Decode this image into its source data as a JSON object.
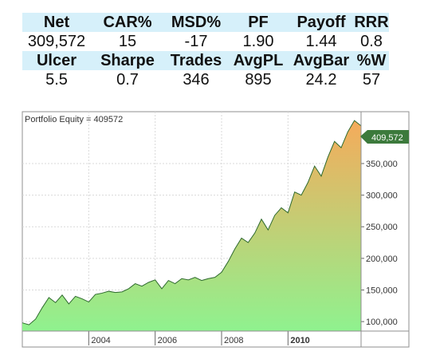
{
  "stats": {
    "rows": [
      {
        "type": "hdr",
        "cells": [
          "Net",
          "CAR%",
          "MSD%",
          "PF",
          "Payoff",
          "RRR"
        ]
      },
      {
        "type": "val",
        "cells": [
          "309,572",
          "15",
          "-17",
          "1.90",
          "1.44",
          "0.8"
        ]
      },
      {
        "type": "hdr",
        "cells": [
          "Ulcer",
          "Sharpe",
          "Trades",
          "AvgPL",
          "AvgBar",
          "%W"
        ]
      },
      {
        "type": "val",
        "cells": [
          "5.5",
          "0.7",
          "346",
          "895",
          "24.2",
          "57"
        ]
      }
    ]
  },
  "chart_data": {
    "type": "area",
    "title": "Portfolio Equity = 409572",
    "last_value_label": "409,572",
    "x_ticks": [
      "2004",
      "2006",
      "2008",
      "2010"
    ],
    "bold_tick": "2010",
    "y_ticks": [
      "100,000",
      "150,000",
      "200,000",
      "250,000",
      "300,000",
      "350,000"
    ],
    "ylim": [
      85000,
      432000
    ],
    "xlim": [
      2002.0,
      2012.2
    ],
    "grid": true,
    "gradient": {
      "bottom": "#8ff28f",
      "top": "#f5ab5b"
    },
    "line_color": "#2e6a2e",
    "marker_color": "#3c7a3c",
    "x": [
      2002.0,
      2002.2,
      2002.4,
      2002.6,
      2002.8,
      2003.0,
      2003.2,
      2003.4,
      2003.6,
      2003.8,
      2004.0,
      2004.2,
      2004.4,
      2004.6,
      2004.8,
      2005.0,
      2005.2,
      2005.4,
      2005.6,
      2005.8,
      2006.0,
      2006.2,
      2006.4,
      2006.6,
      2006.8,
      2007.0,
      2007.2,
      2007.4,
      2007.6,
      2007.8,
      2008.0,
      2008.2,
      2008.4,
      2008.6,
      2008.8,
      2009.0,
      2009.2,
      2009.4,
      2009.6,
      2009.8,
      2010.0,
      2010.2,
      2010.4,
      2010.6,
      2010.8,
      2011.0,
      2011.2,
      2011.4,
      2011.6,
      2011.8,
      2012.0,
      2012.2
    ],
    "values": [
      98000,
      95000,
      104000,
      122000,
      138000,
      130000,
      142000,
      128000,
      140000,
      136000,
      131000,
      143000,
      145000,
      148000,
      146000,
      147000,
      152000,
      160000,
      156000,
      162000,
      166000,
      152000,
      165000,
      160000,
      168000,
      166000,
      170000,
      165000,
      168000,
      170000,
      178000,
      195000,
      215000,
      232000,
      225000,
      240000,
      262000,
      245000,
      268000,
      280000,
      272000,
      305000,
      300000,
      320000,
      346000,
      330000,
      360000,
      385000,
      375000,
      400000,
      418000,
      409572
    ]
  }
}
